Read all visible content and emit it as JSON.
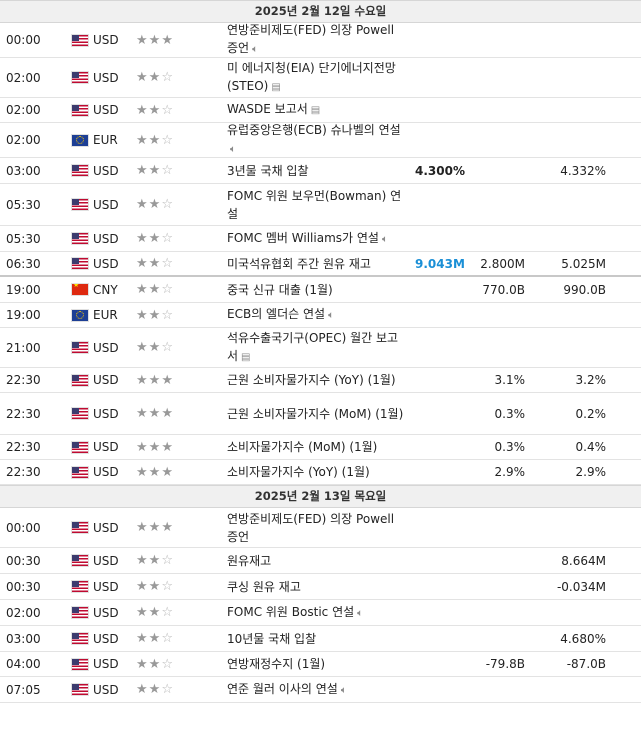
{
  "day1": {
    "header": "2025년 2월 12일 수요일",
    "rows": [
      {
        "time": "00:00",
        "cc": "us",
        "cur": "USD",
        "stars": 3,
        "event": "연방준비제도(FED) 의장 Powell 증언",
        "icon": "speaker-icon",
        "actual": "",
        "forecast": "",
        "previous": ""
      },
      {
        "time": "02:00",
        "cc": "us",
        "cur": "USD",
        "stars": 2,
        "event": "미 에너지청(EIA) 단기에너지전망(STEO)",
        "icon": "report-icon",
        "actual": "",
        "forecast": "",
        "previous": ""
      },
      {
        "time": "02:00",
        "cc": "us",
        "cur": "USD",
        "stars": 2,
        "event": "WASDE 보고서",
        "icon": "report-icon",
        "actual": "",
        "forecast": "",
        "previous": ""
      },
      {
        "time": "02:00",
        "cc": "eu",
        "cur": "EUR",
        "stars": 2,
        "event": "유럽중앙은행(ECB) 슈나벨의 연설",
        "icon": "speaker-icon",
        "actual": "",
        "forecast": "",
        "previous": ""
      },
      {
        "time": "03:00",
        "cc": "us",
        "cur": "USD",
        "stars": 2,
        "event": "3년물 국채 입찰",
        "icon": "",
        "actual": "4.300%",
        "forecast": "",
        "previous": "4.332%"
      },
      {
        "time": "05:30",
        "cc": "us",
        "cur": "USD",
        "stars": 2,
        "event": "FOMC 위원 보우먼(Bowman) 연설",
        "icon": "",
        "actual": "",
        "forecast": "",
        "previous": ""
      },
      {
        "time": "05:30",
        "cc": "us",
        "cur": "USD",
        "stars": 2,
        "event": "FOMC 멤버 Williams가 연설",
        "icon": "speaker-icon",
        "actual": "",
        "forecast": "",
        "previous": ""
      },
      {
        "time": "06:30",
        "cc": "us",
        "cur": "USD",
        "stars": 2,
        "event": "미국석유협회 주간 원유 재고",
        "icon": "",
        "actual": "9.043M",
        "actual_blue": true,
        "forecast": "2.800M",
        "previous": "5.025M",
        "sep": true
      },
      {
        "time": "19:00",
        "cc": "cn",
        "cur": "CNY",
        "stars": 2,
        "event": "중국 신규 대출 (1월)",
        "icon": "",
        "actual": "",
        "forecast": "770.0B",
        "previous": "990.0B"
      },
      {
        "time": "19:00",
        "cc": "eu",
        "cur": "EUR",
        "stars": 2,
        "event": "ECB의 엘더슨 연설",
        "icon": "speaker-icon",
        "actual": "",
        "forecast": "",
        "previous": ""
      },
      {
        "time": "21:00",
        "cc": "us",
        "cur": "USD",
        "stars": 2,
        "event": "석유수출국기구(OPEC) 월간 보고서",
        "icon": "report-icon",
        "actual": "",
        "forecast": "",
        "previous": ""
      },
      {
        "time": "22:30",
        "cc": "us",
        "cur": "USD",
        "stars": 3,
        "event": "근원 소비자물가지수 (YoY) (1월)",
        "icon": "",
        "actual": "",
        "forecast": "3.1%",
        "previous": "3.2%"
      },
      {
        "time": "22:30",
        "cc": "us",
        "cur": "USD",
        "stars": 3,
        "event": "근원 소비자물가지수 (MoM) (1월)",
        "icon": "",
        "actual": "",
        "forecast": "0.3%",
        "previous": "0.2%"
      },
      {
        "time": "22:30",
        "cc": "us",
        "cur": "USD",
        "stars": 3,
        "event": "소비자물가지수 (MoM) (1월)",
        "icon": "",
        "actual": "",
        "forecast": "0.3%",
        "previous": "0.4%"
      },
      {
        "time": "22:30",
        "cc": "us",
        "cur": "USD",
        "stars": 3,
        "event": "소비자물가지수 (YoY) (1월)",
        "icon": "",
        "actual": "",
        "forecast": "2.9%",
        "previous": "2.9%"
      }
    ]
  },
  "day2": {
    "header": "2025년 2월 13일 목요일",
    "rows": [
      {
        "time": "00:00",
        "cc": "us",
        "cur": "USD",
        "stars": 3,
        "event": "연방준비제도(FED) 의장 Powell 증언",
        "icon": "",
        "actual": "",
        "forecast": "",
        "previous": ""
      },
      {
        "time": "00:30",
        "cc": "us",
        "cur": "USD",
        "stars": 2,
        "event": "원유재고",
        "icon": "",
        "actual": "",
        "forecast": "",
        "previous": "8.664M"
      },
      {
        "time": "00:30",
        "cc": "us",
        "cur": "USD",
        "stars": 2,
        "event": "쿠싱 원유 재고",
        "icon": "",
        "actual": "",
        "forecast": "",
        "previous": "-0.034M"
      },
      {
        "time": "02:00",
        "cc": "us",
        "cur": "USD",
        "stars": 2,
        "event": "FOMC 위원 Bostic 연설",
        "icon": "speaker-icon",
        "actual": "",
        "forecast": "",
        "previous": ""
      },
      {
        "time": "03:00",
        "cc": "us",
        "cur": "USD",
        "stars": 2,
        "event": "10년물 국채 입찰",
        "icon": "",
        "actual": "",
        "forecast": "",
        "previous": "4.680%"
      },
      {
        "time": "04:00",
        "cc": "us",
        "cur": "USD",
        "stars": 2,
        "event": "연방재정수지 (1월)",
        "icon": "",
        "actual": "",
        "forecast": "-79.8B",
        "previous": "-87.0B"
      },
      {
        "time": "07:05",
        "cc": "us",
        "cur": "USD",
        "stars": 2,
        "event": "연준 월러 이사의 연설",
        "icon": "speaker-icon",
        "actual": "",
        "forecast": "",
        "previous": ""
      }
    ]
  }
}
